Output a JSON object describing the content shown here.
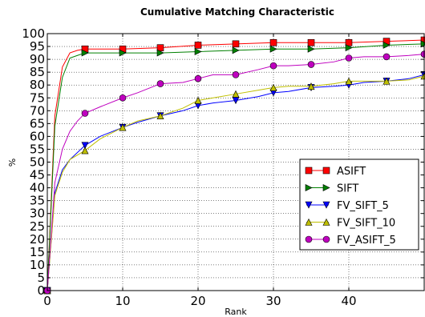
{
  "chart_data": {
    "type": "line",
    "title": "Cumulative Matching Characteristic",
    "xlabel": "Rank",
    "ylabel": "%",
    "xlim": [
      0,
      50
    ],
    "ylim": [
      0,
      100
    ],
    "xticks": [
      "0",
      "10",
      "20",
      "30",
      "40"
    ],
    "xtick_values": [
      0,
      10,
      20,
      30,
      40
    ],
    "yticks": [
      "0",
      "5",
      "10",
      "15",
      "20",
      "25",
      "30",
      "35",
      "40",
      "45",
      "50",
      "55",
      "60",
      "65",
      "70",
      "75",
      "80",
      "85",
      "90",
      "95",
      "100"
    ],
    "ytick_values": [
      0,
      5,
      10,
      15,
      20,
      25,
      30,
      35,
      40,
      45,
      50,
      55,
      60,
      65,
      70,
      75,
      80,
      85,
      90,
      95,
      100
    ],
    "grid": true,
    "legend_position": "center-right",
    "series": [
      {
        "name": "ASIFT",
        "color": "#ff0000",
        "marker": "square",
        "x": [
          0,
          1,
          2,
          3,
          4,
          5,
          10,
          15,
          20,
          25,
          30,
          35,
          40,
          45,
          50
        ],
        "values": [
          0,
          68,
          87,
          92.5,
          93.5,
          94,
          94,
          94.5,
          95.5,
          96,
          96.5,
          96.5,
          96.5,
          97,
          97.5
        ],
        "marker_x": [
          0,
          5,
          10,
          15,
          20,
          25,
          30,
          35,
          40,
          45,
          50
        ],
        "marker_values": [
          0,
          94,
          94,
          94.5,
          95.5,
          96,
          96.5,
          96.5,
          96.5,
          97,
          97.5
        ]
      },
      {
        "name": "SIFT",
        "color": "#008000",
        "marker": "triangle-right",
        "x": [
          0,
          1,
          2,
          3,
          4,
          5,
          10,
          15,
          20,
          25,
          30,
          35,
          40,
          45,
          50
        ],
        "values": [
          0,
          64,
          83,
          90.5,
          91.5,
          92.5,
          92.5,
          92.5,
          93,
          93.5,
          94,
          94,
          94.5,
          95.5,
          96
        ],
        "marker_x": [
          0,
          5,
          10,
          15,
          20,
          25,
          30,
          35,
          40,
          45,
          50
        ],
        "marker_values": [
          0,
          92.5,
          92.5,
          92.5,
          93,
          93.5,
          94,
          94,
          94.5,
          95.5,
          96
        ]
      },
      {
        "name": "FV_SIFT_5",
        "color": "#0000ff",
        "marker": "triangle-down",
        "x": [
          0,
          1,
          2,
          3,
          5,
          7,
          10,
          12,
          15,
          18,
          20,
          22,
          25,
          28,
          30,
          32,
          35,
          38,
          40,
          42,
          45,
          48,
          50
        ],
        "values": [
          0,
          38,
          47,
          51,
          56.5,
          60,
          63.5,
          65.5,
          68,
          70,
          72,
          73,
          74,
          75.5,
          77,
          77.5,
          79,
          79.5,
          80,
          81,
          81.5,
          82.5,
          84
        ],
        "marker_x": [
          0,
          5,
          10,
          15,
          20,
          25,
          30,
          35,
          40,
          45,
          50
        ],
        "marker_values": [
          0,
          56.5,
          63.5,
          68,
          72,
          74,
          77,
          79,
          80,
          81.5,
          84
        ]
      },
      {
        "name": "FV_SIFT_10",
        "color": "#bfbf00",
        "marker": "triangle-up",
        "x": [
          0,
          1,
          2,
          3,
          5,
          7,
          10,
          12,
          15,
          18,
          20,
          22,
          25,
          28,
          30,
          32,
          35,
          38,
          40,
          42,
          45,
          48,
          50
        ],
        "values": [
          0,
          37,
          46,
          51,
          54.5,
          59,
          63.5,
          66,
          68,
          71,
          74,
          75,
          76.5,
          78,
          79,
          79.5,
          79.5,
          80.5,
          81.5,
          81.5,
          81.5,
          82,
          83.5
        ],
        "marker_x": [
          0,
          5,
          10,
          15,
          20,
          25,
          30,
          35,
          40,
          45,
          50
        ],
        "marker_values": [
          0,
          54.5,
          63.5,
          68,
          74,
          76.5,
          79,
          79.5,
          81.5,
          81.5,
          83.5
        ]
      },
      {
        "name": "FV_ASIFT_5",
        "color": "#bf00bf",
        "marker": "circle",
        "x": [
          0,
          1,
          2,
          3,
          4,
          5,
          7,
          10,
          12,
          15,
          18,
          20,
          22,
          25,
          28,
          30,
          32,
          35,
          38,
          40,
          42,
          45,
          48,
          50
        ],
        "values": [
          0,
          42,
          55,
          62,
          66,
          69,
          71.5,
          75,
          77,
          80.5,
          81,
          82.5,
          84,
          84,
          86,
          87.5,
          87.5,
          88,
          89,
          90.5,
          91,
          91,
          91.5,
          92
        ],
        "marker_x": [
          0,
          5,
          10,
          15,
          20,
          25,
          30,
          35,
          40,
          45,
          50
        ],
        "marker_values": [
          0,
          69,
          75,
          80.5,
          82.5,
          84,
          87.5,
          88,
          90.5,
          91,
          92
        ]
      }
    ]
  }
}
